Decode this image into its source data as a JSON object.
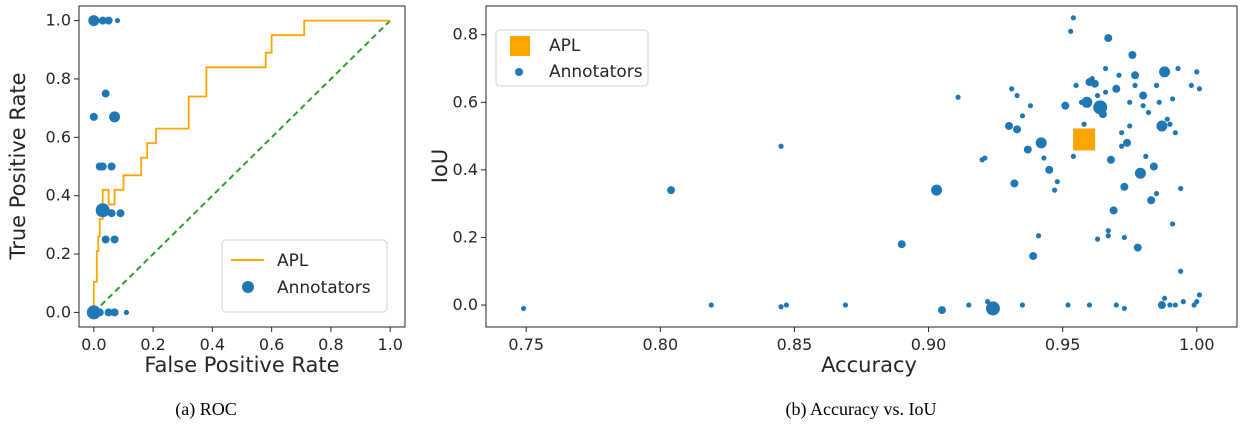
{
  "colors": {
    "apl": "#FFA500",
    "annotators": "#1F77B4",
    "diagonal": "#2CA02C",
    "axis": "#262626"
  },
  "chart_data": [
    {
      "type": "line",
      "caption": "(a) ROC",
      "xlabel": "False Positive Rate",
      "ylabel": "True Positive Rate",
      "xlim": [
        -0.05,
        1.05
      ],
      "ylim": [
        -0.05,
        1.05
      ],
      "xticks": [
        "0.0",
        "0.2",
        "0.4",
        "0.6",
        "0.8",
        "1.0"
      ],
      "yticks": [
        "0.0",
        "0.2",
        "0.4",
        "0.6",
        "0.8",
        "1.0"
      ],
      "grid": false,
      "legend_position": "lower-right",
      "series": [
        {
          "name": "APL",
          "kind": "step-line",
          "points": [
            [
              0,
              0
            ],
            [
              0,
              0.105
            ],
            [
              0.01,
              0.105
            ],
            [
              0.01,
              0.21
            ],
            [
              0.015,
              0.21
            ],
            [
              0.015,
              0.26
            ],
            [
              0.02,
              0.26
            ],
            [
              0.02,
              0.32
            ],
            [
              0.03,
              0.32
            ],
            [
              0.03,
              0.42
            ],
            [
              0.05,
              0.42
            ],
            [
              0.05,
              0.37
            ],
            [
              0.07,
              0.37
            ],
            [
              0.07,
              0.42
            ],
            [
              0.1,
              0.42
            ],
            [
              0.1,
              0.47
            ],
            [
              0.16,
              0.47
            ],
            [
              0.16,
              0.53
            ],
            [
              0.18,
              0.53
            ],
            [
              0.18,
              0.58
            ],
            [
              0.21,
              0.58
            ],
            [
              0.21,
              0.63
            ],
            [
              0.32,
              0.63
            ],
            [
              0.32,
              0.74
            ],
            [
              0.38,
              0.74
            ],
            [
              0.38,
              0.84
            ],
            [
              0.58,
              0.84
            ],
            [
              0.58,
              0.89
            ],
            [
              0.6,
              0.89
            ],
            [
              0.6,
              0.95
            ],
            [
              0.71,
              0.95
            ],
            [
              0.71,
              1.0
            ],
            [
              1.0,
              1.0
            ]
          ]
        },
        {
          "name": "Annotators",
          "kind": "scatter",
          "points": [
            [
              0,
              1.0,
              3
            ],
            [
              0.03,
              1.0,
              2
            ],
            [
              0.05,
              1.0,
              2
            ],
            [
              0.08,
              1.0,
              1
            ],
            [
              0.04,
              0.75,
              2
            ],
            [
              0,
              0.67,
              2
            ],
            [
              0.07,
              0.67,
              3
            ],
            [
              0.02,
              0.5,
              2
            ],
            [
              0.03,
              0.5,
              2
            ],
            [
              0.06,
              0.5,
              2
            ],
            [
              0.03,
              0.35,
              4
            ],
            [
              0.06,
              0.34,
              2
            ],
            [
              0.09,
              0.34,
              2
            ],
            [
              0.04,
              0.25,
              2
            ],
            [
              0.07,
              0.25,
              2
            ],
            [
              0,
              0.0,
              4
            ],
            [
              0.02,
              0.0,
              2
            ],
            [
              0.05,
              0.0,
              2
            ],
            [
              0.07,
              0.0,
              2
            ],
            [
              0.11,
              0.0,
              1
            ]
          ]
        },
        {
          "name": "",
          "kind": "dashed-line",
          "points": [
            [
              0,
              0
            ],
            [
              1,
              1
            ]
          ]
        }
      ]
    },
    {
      "type": "scatter",
      "caption": "(b) Accuracy vs. IoU",
      "xlabel": "Accuracy",
      "ylabel": "IoU",
      "xlim": [
        0.735,
        1.015
      ],
      "ylim": [
        -0.065,
        0.885
      ],
      "xticks": [
        "0.75",
        "0.80",
        "0.85",
        "0.90",
        "0.95",
        "1.00"
      ],
      "yticks": [
        "0.0",
        "0.2",
        "0.4",
        "0.6",
        "0.8"
      ],
      "grid": false,
      "legend_position": "top-left",
      "series": [
        {
          "name": "APL",
          "kind": "square",
          "points": [
            [
              0.958,
              0.49
            ]
          ]
        },
        {
          "name": "Annotators",
          "kind": "scatter",
          "points": [
            [
              0.749,
              -0.01,
              1
            ],
            [
              0.804,
              0.34,
              2
            ],
            [
              0.819,
              0.0,
              1
            ],
            [
              0.845,
              -0.005,
              1
            ],
            [
              0.847,
              0.0,
              1
            ],
            [
              0.845,
              0.47,
              1
            ],
            [
              0.869,
              0.0,
              1
            ],
            [
              0.89,
              0.18,
              2
            ],
            [
              0.903,
              0.34,
              3
            ],
            [
              0.905,
              -0.015,
              2
            ],
            [
              0.911,
              0.615,
              1
            ],
            [
              0.915,
              0.0,
              1
            ],
            [
              0.921,
              0.435,
              1
            ],
            [
              0.922,
              0.01,
              1
            ],
            [
              0.924,
              -0.01,
              4
            ],
            [
              0.92,
              0.43,
              1
            ],
            [
              0.93,
              0.53,
              2
            ],
            [
              0.932,
              0.36,
              2
            ],
            [
              0.931,
              0.64,
              1
            ],
            [
              0.933,
              0.52,
              2
            ],
            [
              0.933,
              0.62,
              1
            ],
            [
              0.935,
              0.0,
              1
            ],
            [
              0.935,
              0.56,
              1
            ],
            [
              0.937,
              0.46,
              2
            ],
            [
              0.938,
              0.59,
              1
            ],
            [
              0.939,
              0.145,
              2
            ],
            [
              0.941,
              0.205,
              1
            ],
            [
              0.942,
              0.48,
              3
            ],
            [
              0.943,
              0.435,
              1
            ],
            [
              0.945,
              0.4,
              2
            ],
            [
              0.947,
              0.34,
              1
            ],
            [
              0.948,
              0.365,
              1
            ],
            [
              0.951,
              0.59,
              2
            ],
            [
              0.952,
              0.0,
              1
            ],
            [
              0.953,
              0.81,
              1
            ],
            [
              0.954,
              0.85,
              1
            ],
            [
              0.954,
              0.44,
              1
            ],
            [
              0.955,
              0.65,
              1
            ],
            [
              0.956,
              0.505,
              1
            ],
            [
              0.957,
              0.6,
              1
            ],
            [
              0.958,
              0.535,
              1
            ],
            [
              0.959,
              0.6,
              3
            ],
            [
              0.96,
              0.66,
              2
            ],
            [
              0.96,
              0.0,
              1
            ],
            [
              0.961,
              0.67,
              1
            ],
            [
              0.962,
              0.655,
              2
            ],
            [
              0.963,
              0.195,
              1
            ],
            [
              0.963,
              0.62,
              1
            ],
            [
              0.964,
              0.585,
              4
            ],
            [
              0.965,
              0.565,
              2
            ],
            [
              0.966,
              0.7,
              1
            ],
            [
              0.966,
              0.63,
              1
            ],
            [
              0.967,
              0.79,
              2
            ],
            [
              0.967,
              0.205,
              1
            ],
            [
              0.967,
              0.22,
              1
            ],
            [
              0.968,
              0.43,
              2
            ],
            [
              0.969,
              0.28,
              2
            ],
            [
              0.97,
              0.64,
              2
            ],
            [
              0.97,
              0.0,
              1
            ],
            [
              0.971,
              0.68,
              1
            ],
            [
              0.972,
              0.51,
              1
            ],
            [
              0.972,
              0.47,
              1
            ],
            [
              0.973,
              0.35,
              2
            ],
            [
              0.973,
              0.2,
              1
            ],
            [
              0.973,
              -0.01,
              1
            ],
            [
              0.974,
              0.48,
              2
            ],
            [
              0.975,
              0.53,
              1
            ],
            [
              0.975,
              0.6,
              1
            ],
            [
              0.976,
              0.74,
              2
            ],
            [
              0.977,
              0.68,
              2
            ],
            [
              0.977,
              0.65,
              1
            ],
            [
              0.978,
              0.17,
              2
            ],
            [
              0.979,
              0.39,
              3
            ],
            [
              0.98,
              0.59,
              1
            ],
            [
              0.98,
              0.62,
              2
            ],
            [
              0.981,
              0.44,
              1
            ],
            [
              0.982,
              0.57,
              1
            ],
            [
              0.983,
              0.31,
              2
            ],
            [
              0.984,
              0.41,
              2
            ],
            [
              0.985,
              0.65,
              1
            ],
            [
              0.985,
              0.33,
              1
            ],
            [
              0.986,
              0.6,
              1
            ],
            [
              0.987,
              0.0,
              2
            ],
            [
              0.987,
              0.53,
              3
            ],
            [
              0.988,
              0.02,
              1
            ],
            [
              0.988,
              0.69,
              3
            ],
            [
              0.989,
              0.55,
              1
            ],
            [
              0.99,
              0.0,
              1
            ],
            [
              0.99,
              0.535,
              1
            ],
            [
              0.991,
              0.61,
              1
            ],
            [
              0.991,
              0.24,
              1
            ],
            [
              0.992,
              0.51,
              1
            ],
            [
              0.992,
              0.0,
              1
            ],
            [
              0.993,
              0.7,
              1
            ],
            [
              0.994,
              0.345,
              1
            ],
            [
              0.994,
              0.1,
              1
            ],
            [
              0.995,
              0.01,
              1
            ],
            [
              0.998,
              0.65,
              1
            ],
            [
              0.999,
              0.0,
              1
            ],
            [
              1.0,
              0.69,
              1
            ],
            [
              1.0,
              0.01,
              1
            ],
            [
              1.001,
              0.64,
              1
            ],
            [
              1.001,
              0.03,
              1
            ]
          ]
        }
      ]
    }
  ]
}
